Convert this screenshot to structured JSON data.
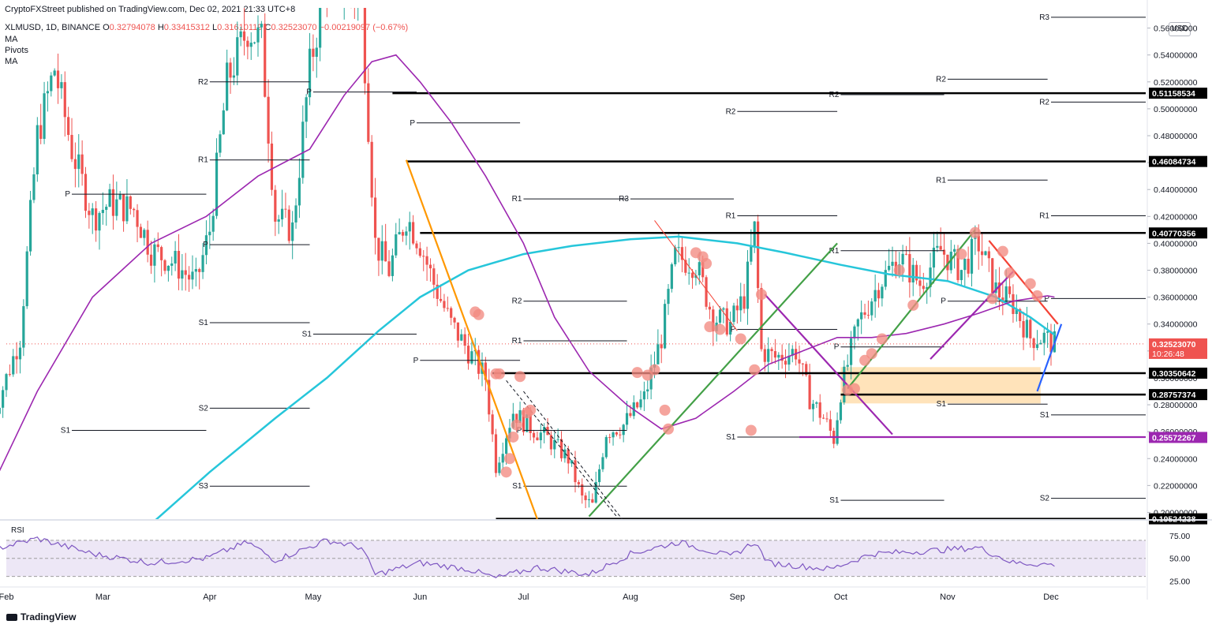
{
  "header": {
    "published": "CryptoFXStreet published on TradingView.com, Dec 02, 2021 21:33 UTC+8",
    "symbol": "XLMUSD, 1D, BINANCE",
    "ohlc": {
      "o_label": "O",
      "o": "0.32794078",
      "h_label": "H",
      "h": "0.33415312",
      "l_label": "L",
      "l": "0.31610119",
      "c_label": "C",
      "c": "0.32523070",
      "change": "−0.00219097 (−0.67%)"
    },
    "indicators": [
      "MA",
      "Pivots",
      "MA"
    ]
  },
  "currency": "USD",
  "brand": "TradingView",
  "rsi_label": "RSI",
  "colors": {
    "up": "#26a69a",
    "down": "#ef5350",
    "ma_fast": "#9c27b0",
    "ma_slow": "#26c6da",
    "orange": "#ff9800",
    "green": "#43a047",
    "purple": "#9c27b0",
    "red": "#f44336",
    "blue": "#2962ff",
    "zone": "#ffe0b2",
    "rsi": "#7e57c2",
    "rsi_band": "#ede7f6"
  },
  "chart_data": {
    "type": "candlestick",
    "title": "",
    "x_ticks": [
      "Feb",
      "Mar",
      "Apr",
      "May",
      "Jun",
      "Jul",
      "Aug",
      "Sep",
      "Oct",
      "Nov",
      "Dec"
    ],
    "y_ticks": [
      "0.56000000",
      "0.54000000",
      "0.52000000",
      "0.50000000",
      "0.48000000",
      "0.46000000",
      "0.44000000",
      "0.42000000",
      "0.40000000",
      "0.38000000",
      "0.36000000",
      "0.34000000",
      "0.32000000",
      "0.30000000",
      "0.28000000",
      "0.26000000",
      "0.24000000",
      "0.22000000",
      "0.20000000"
    ],
    "ylim": [
      0.195,
      0.575
    ],
    "price_labels": [
      {
        "value": 0.51158534,
        "text": "0.51158534",
        "style": "black"
      },
      {
        "value": 0.46084734,
        "text": "0.46084734",
        "style": "black"
      },
      {
        "value": 0.40770356,
        "text": "0.40770356",
        "style": "black"
      },
      {
        "value": 0.3252307,
        "text": "0.32523070",
        "style": "current",
        "sub": "10:26:48"
      },
      {
        "value": 0.30350642,
        "text": "0.30350642",
        "style": "black"
      },
      {
        "value": 0.28757374,
        "text": "0.28757374",
        "style": "black"
      },
      {
        "value": 0.25572267,
        "text": "0.25572267",
        "style": "purple"
      },
      {
        "value": 0.19524238,
        "text": "0.19524238",
        "style": "black"
      }
    ],
    "horizontal_levels": [
      {
        "value": 0.51158534,
        "x_from": "May 24"
      },
      {
        "value": 0.46084734,
        "x_from": "May 28"
      },
      {
        "value": 0.40770356,
        "x_from": "Jun 1"
      },
      {
        "value": 0.30350642,
        "x_from": "Jun 22"
      },
      {
        "value": 0.28757374,
        "x_from": "Oct 1"
      },
      {
        "value": 0.19524238,
        "x_from": "Jun 23"
      }
    ],
    "pivots": [
      {
        "label": "P",
        "value": 0.4365,
        "from": "Feb 20",
        "to": "Mar 31"
      },
      {
        "label": "R1",
        "value": 0.462,
        "from": "Apr 1",
        "to": "Apr 30"
      },
      {
        "label": "R2",
        "value": 0.52,
        "from": "Apr 1",
        "to": "Apr 30"
      },
      {
        "label": "P",
        "value": 0.399,
        "from": "Apr 1",
        "to": "Apr 30"
      },
      {
        "label": "S1",
        "value": 0.341,
        "from": "Apr 1",
        "to": "Apr 30"
      },
      {
        "label": "S2",
        "value": 0.2775,
        "from": "Apr 1",
        "to": "Apr 30"
      },
      {
        "label": "S3",
        "value": 0.2195,
        "from": "Apr 1",
        "to": "Apr 30"
      },
      {
        "label": "S1",
        "value": 0.261,
        "from": "Feb 20",
        "to": "Mar 31"
      },
      {
        "label": "P",
        "value": 0.5125,
        "from": "May 1",
        "to": "May 31"
      },
      {
        "label": "S1",
        "value": 0.3325,
        "from": "May 1",
        "to": "May 31"
      },
      {
        "label": "P",
        "value": 0.4895,
        "from": "May 31",
        "to": "Jun 30"
      },
      {
        "label": "R1",
        "value": 0.433,
        "from": "Jul 1",
        "to": "Jul 31"
      },
      {
        "label": "R2",
        "value": 0.357,
        "from": "Jul 1",
        "to": "Jul 31"
      },
      {
        "label": "R1",
        "value": 0.3275,
        "from": "Jul 1",
        "to": "Jul 31"
      },
      {
        "label": "P",
        "value": 0.261,
        "from": "Jul 1",
        "to": "Jul 31"
      },
      {
        "label": "S1",
        "value": 0.2195,
        "from": "Jul 1",
        "to": "Jul 31"
      },
      {
        "label": "P",
        "value": 0.313,
        "from": "Jun 1",
        "to": "Jun 30"
      },
      {
        "label": "R3",
        "value": 0.433,
        "from": "Aug 1",
        "to": "Aug 31"
      },
      {
        "label": "R2",
        "value": 0.498,
        "from": "Sep 1",
        "to": "Sep 30"
      },
      {
        "label": "R1",
        "value": 0.4205,
        "from": "Sep 1",
        "to": "Sep 30"
      },
      {
        "label": "P",
        "value": 0.336,
        "from": "Sep 1",
        "to": "Sep 30"
      },
      {
        "label": "S1",
        "value": 0.256,
        "from": "Sep 1",
        "to": "Sep 30"
      },
      {
        "label": "R2",
        "value": 0.5105,
        "from": "Oct 1",
        "to": "Oct 31"
      },
      {
        "label": "R1",
        "value": 0.3945,
        "from": "Oct 1",
        "to": "Oct 31"
      },
      {
        "label": "P",
        "value": 0.323,
        "from": "Oct 1",
        "to": "Oct 31"
      },
      {
        "label": "S1",
        "value": 0.209,
        "from": "Oct 1",
        "to": "Oct 31"
      },
      {
        "label": "R2",
        "value": 0.522,
        "from": "Nov 1",
        "to": "Nov 30"
      },
      {
        "label": "R1",
        "value": 0.447,
        "from": "Nov 1",
        "to": "Nov 30"
      },
      {
        "label": "P",
        "value": 0.357,
        "from": "Nov 1",
        "to": "Nov 30"
      },
      {
        "label": "S1",
        "value": 0.2805,
        "from": "Nov 1",
        "to": "Nov 30"
      },
      {
        "label": "R3",
        "value": 0.568,
        "from": "Dec 1",
        "to": "Dec 31"
      },
      {
        "label": "R2",
        "value": 0.505,
        "from": "Dec 1",
        "to": "Dec 31"
      },
      {
        "label": "R1",
        "value": 0.4205,
        "from": "Dec 1",
        "to": "Dec 31"
      },
      {
        "label": "P",
        "value": 0.359,
        "from": "Dec 1",
        "to": "Dec 31"
      },
      {
        "label": "S1",
        "value": 0.2725,
        "from": "Dec 1",
        "to": "Dec 31"
      },
      {
        "label": "S2",
        "value": 0.2105,
        "from": "Dec 1",
        "to": "Dec 31"
      }
    ],
    "close_path": [
      [
        "Jan 28",
        0.27
      ],
      [
        "Feb 5",
        0.33
      ],
      [
        "Feb 10",
        0.48
      ],
      [
        "Feb 15",
        0.53
      ],
      [
        "Feb 20",
        0.47
      ],
      [
        "Feb 26",
        0.42
      ],
      [
        "Mar 3",
        0.43
      ],
      [
        "Mar 10",
        0.425
      ],
      [
        "Mar 15",
        0.395
      ],
      [
        "Mar 22",
        0.385
      ],
      [
        "Mar 28",
        0.37
      ],
      [
        "Apr 1",
        0.41
      ],
      [
        "Apr 6",
        0.52
      ],
      [
        "Apr 12",
        0.56
      ],
      [
        "Apr 16",
        0.55
      ],
      [
        "Apr 20",
        0.42
      ],
      [
        "Apr 25",
        0.41
      ],
      [
        "Apr 30",
        0.53
      ],
      [
        "May 5",
        0.6
      ],
      [
        "May 10",
        0.59
      ],
      [
        "May 15",
        0.58
      ],
      [
        "May 19",
        0.4
      ],
      [
        "May 23",
        0.38
      ],
      [
        "May 28",
        0.42
      ],
      [
        "Jun 1",
        0.4
      ],
      [
        "Jun 5",
        0.37
      ],
      [
        "Jun 10",
        0.34
      ],
      [
        "Jun 15",
        0.32
      ],
      [
        "Jun 20",
        0.3
      ],
      [
        "Jun 23",
        0.235
      ],
      [
        "Jun 28",
        0.275
      ],
      [
        "Jul 2",
        0.265
      ],
      [
        "Jul 8",
        0.255
      ],
      [
        "Jul 14",
        0.24
      ],
      [
        "Jul 18",
        0.21
      ],
      [
        "Jul 21",
        0.205
      ],
      [
        "Jul 25",
        0.26
      ],
      [
        "Jul 30",
        0.265
      ],
      [
        "Aug 5",
        0.285
      ],
      [
        "Aug 10",
        0.33
      ],
      [
        "Aug 14",
        0.39
      ],
      [
        "Aug 20",
        0.385
      ],
      [
        "Aug 25",
        0.345
      ],
      [
        "Aug 30",
        0.34
      ],
      [
        "Sep 3",
        0.36
      ],
      [
        "Sep 6",
        0.41
      ],
      [
        "Sep 8",
        0.32
      ],
      [
        "Sep 12",
        0.315
      ],
      [
        "Sep 18",
        0.32
      ],
      [
        "Sep 22",
        0.285
      ],
      [
        "Sep 26",
        0.27
      ],
      [
        "Sep 29",
        0.255
      ],
      [
        "Oct 1",
        0.29
      ],
      [
        "Oct 6",
        0.34
      ],
      [
        "Oct 12",
        0.37
      ],
      [
        "Oct 18",
        0.39
      ],
      [
        "Oct 24",
        0.37
      ],
      [
        "Oct 30",
        0.395
      ],
      [
        "Nov 5",
        0.38
      ],
      [
        "Nov 10",
        0.4
      ],
      [
        "Nov 15",
        0.365
      ],
      [
        "Nov 20",
        0.355
      ],
      [
        "Nov 25",
        0.33
      ],
      [
        "Nov 29",
        0.33
      ],
      [
        "Dec 2",
        0.3252
      ]
    ],
    "ma_fast": [
      [
        "Jan 28",
        0.22
      ],
      [
        "Feb 10",
        0.29
      ],
      [
        "Feb 26",
        0.36
      ],
      [
        "Mar 15",
        0.4
      ],
      [
        "Mar 31",
        0.42
      ],
      [
        "Apr 15",
        0.45
      ],
      [
        "Apr 30",
        0.47
      ],
      [
        "May 10",
        0.51
      ],
      [
        "May 18",
        0.535
      ],
      [
        "May 25",
        0.54
      ],
      [
        "Jun 1",
        0.52
      ],
      [
        "Jun 10",
        0.49
      ],
      [
        "Jun 20",
        0.45
      ],
      [
        "Jul 1",
        0.4
      ],
      [
        "Jul 10",
        0.345
      ],
      [
        "Jul 20",
        0.305
      ],
      [
        "Jul 31",
        0.28
      ],
      [
        "Aug 10",
        0.262
      ],
      [
        "Aug 20",
        0.27
      ],
      [
        "Aug 31",
        0.29
      ],
      [
        "Sep 10",
        0.31
      ],
      [
        "Sep 20",
        0.32
      ],
      [
        "Sep 30",
        0.33
      ],
      [
        "Oct 10",
        0.33
      ],
      [
        "Oct 20",
        0.333
      ],
      [
        "Oct 31",
        0.34
      ],
      [
        "Nov 10",
        0.348
      ],
      [
        "Nov 20",
        0.357
      ],
      [
        "Nov 30",
        0.361
      ],
      [
        "Dec 2",
        0.36
      ]
    ],
    "ma_slow": [
      [
        "Mar 10",
        0.18
      ],
      [
        "Apr 1",
        0.23
      ],
      [
        "Apr 20",
        0.27
      ],
      [
        "May 5",
        0.3
      ],
      [
        "May 20",
        0.335
      ],
      [
        "Jun 1",
        0.36
      ],
      [
        "Jun 15",
        0.38
      ],
      [
        "Jul 1",
        0.392
      ],
      [
        "Jul 15",
        0.398
      ],
      [
        "Aug 1",
        0.403
      ],
      [
        "Aug 15",
        0.405
      ],
      [
        "Sep 1",
        0.4
      ],
      [
        "Sep 15",
        0.393
      ],
      [
        "Oct 1",
        0.384
      ],
      [
        "Oct 15",
        0.377
      ],
      [
        "Nov 1",
        0.372
      ],
      [
        "Nov 15",
        0.36
      ],
      [
        "Nov 25",
        0.345
      ],
      [
        "Dec 2",
        0.332
      ]
    ],
    "trendlines": [
      {
        "color": "orange",
        "from": [
          "May 28",
          0.462
        ],
        "to": [
          "Jul 5",
          0.195
        ],
        "style": "solid"
      },
      {
        "color": "green",
        "from": [
          "Jul 20",
          0.197
        ],
        "to": [
          "Sep 30",
          0.4
        ],
        "style": "solid"
      },
      {
        "color": "green",
        "from": [
          "Oct 3",
          0.292
        ],
        "to": [
          "Nov 9",
          0.41
        ],
        "style": "solid"
      },
      {
        "color": "purple",
        "from": [
          "Sep 9",
          0.362
        ],
        "to": [
          "Oct 16",
          0.258
        ],
        "style": "solid"
      },
      {
        "color": "purple",
        "from": [
          "Oct 27",
          0.314
        ],
        "to": [
          "Nov 20",
          0.379
        ],
        "style": "solid"
      },
      {
        "color": "purple",
        "from": [
          "Sep 19",
          0.256
        ],
        "to": [
          "Dec 31",
          0.256
        ],
        "style": "solid"
      },
      {
        "color": "red",
        "from": [
          "Nov 13",
          0.402
        ],
        "to": [
          "Dec 3",
          0.34
        ],
        "style": "solid"
      },
      {
        "color": "blue",
        "from": [
          "Nov 27",
          0.29
        ],
        "to": [
          "Dec 4",
          0.34
        ],
        "style": "solid"
      },
      {
        "color": "black",
        "from": [
          "Jun 26",
          0.298
        ],
        "to": [
          "Jul 28",
          0.197
        ],
        "style": "dashed"
      },
      {
        "color": "black",
        "from": [
          "Jul 1",
          0.29
        ],
        "to": [
          "Aug 1",
          0.187
        ],
        "style": "dashed"
      },
      {
        "color": "red",
        "from": [
          "Aug 8",
          0.417
        ],
        "to": [
          "Sep 1",
          0.335
        ],
        "style": "thin"
      }
    ],
    "zone": {
      "x_from": "Oct 1",
      "x_to": "Nov 28",
      "y_from": 0.281,
      "y_to": 0.308
    },
    "markers": [
      [
        "Jun 17",
        0.349
      ],
      [
        "Jun 18",
        0.347
      ],
      [
        "Jun 23",
        0.303
      ],
      [
        "Jun 24",
        0.303
      ],
      [
        "Jun 26",
        0.23
      ],
      [
        "Jun 27",
        0.24
      ],
      [
        "Jun 28",
        0.256
      ],
      [
        "Jun 29",
        0.265
      ],
      [
        "Jun 30",
        0.301
      ],
      [
        "Jul 2",
        0.274
      ],
      [
        "Jul 3",
        0.276
      ],
      [
        "Aug 3",
        0.304
      ],
      [
        "Aug 6",
        0.302
      ],
      [
        "Aug 8",
        0.306
      ],
      [
        "Aug 11",
        0.276
      ],
      [
        "Aug 12",
        0.262
      ],
      [
        "Aug 20",
        0.393
      ],
      [
        "Aug 22",
        0.39
      ],
      [
        "Aug 23",
        0.385
      ],
      [
        "Aug 24",
        0.338
      ],
      [
        "Aug 27",
        0.336
      ],
      [
        "Sep 2",
        0.329
      ],
      [
        "Sep 5",
        0.261
      ],
      [
        "Sep 6",
        0.306
      ],
      [
        "Sep 8",
        0.362
      ],
      [
        "Oct 3",
        0.291
      ],
      [
        "Oct 5",
        0.292
      ],
      [
        "Oct 8",
        0.313
      ],
      [
        "Oct 10",
        0.318
      ],
      [
        "Oct 13",
        0.329
      ],
      [
        "Oct 18",
        0.38
      ],
      [
        "Oct 22",
        0.354
      ],
      [
        "Nov 5",
        0.392
      ],
      [
        "Nov 9",
        0.408
      ],
      [
        "Nov 14",
        0.359
      ],
      [
        "Nov 17",
        0.394
      ],
      [
        "Nov 19",
        0.378
      ],
      [
        "Nov 25",
        0.37
      ],
      [
        "Nov 27",
        0.361
      ]
    ],
    "rsi": {
      "y_ticks": [
        "75.00",
        "50.00",
        "25.00"
      ],
      "ylim": [
        20,
        90
      ],
      "band": [
        30,
        70
      ],
      "values": [
        [
          "Jan 28",
          60
        ],
        [
          "Feb 10",
          72
        ],
        [
          "Feb 26",
          55
        ],
        [
          "Mar 15",
          45
        ],
        [
          "Mar 31",
          50
        ],
        [
          "Apr 12",
          68
        ],
        [
          "Apr 20",
          48
        ],
        [
          "May 5",
          70
        ],
        [
          "May 15",
          62
        ],
        [
          "May 19",
          32
        ],
        [
          "Jun 1",
          45
        ],
        [
          "Jun 15",
          38
        ],
        [
          "Jun 23",
          28
        ],
        [
          "Jul 5",
          40
        ],
        [
          "Jul 20",
          32
        ],
        [
          "Aug 1",
          55
        ],
        [
          "Aug 15",
          68
        ],
        [
          "Aug 30",
          52
        ],
        [
          "Sep 6",
          68
        ],
        [
          "Sep 10",
          45
        ],
        [
          "Sep 28",
          38
        ],
        [
          "Oct 10",
          55
        ],
        [
          "Oct 25",
          58
        ],
        [
          "Nov 10",
          62
        ],
        [
          "Nov 20",
          45
        ],
        [
          "Dec 2",
          43
        ]
      ]
    }
  }
}
